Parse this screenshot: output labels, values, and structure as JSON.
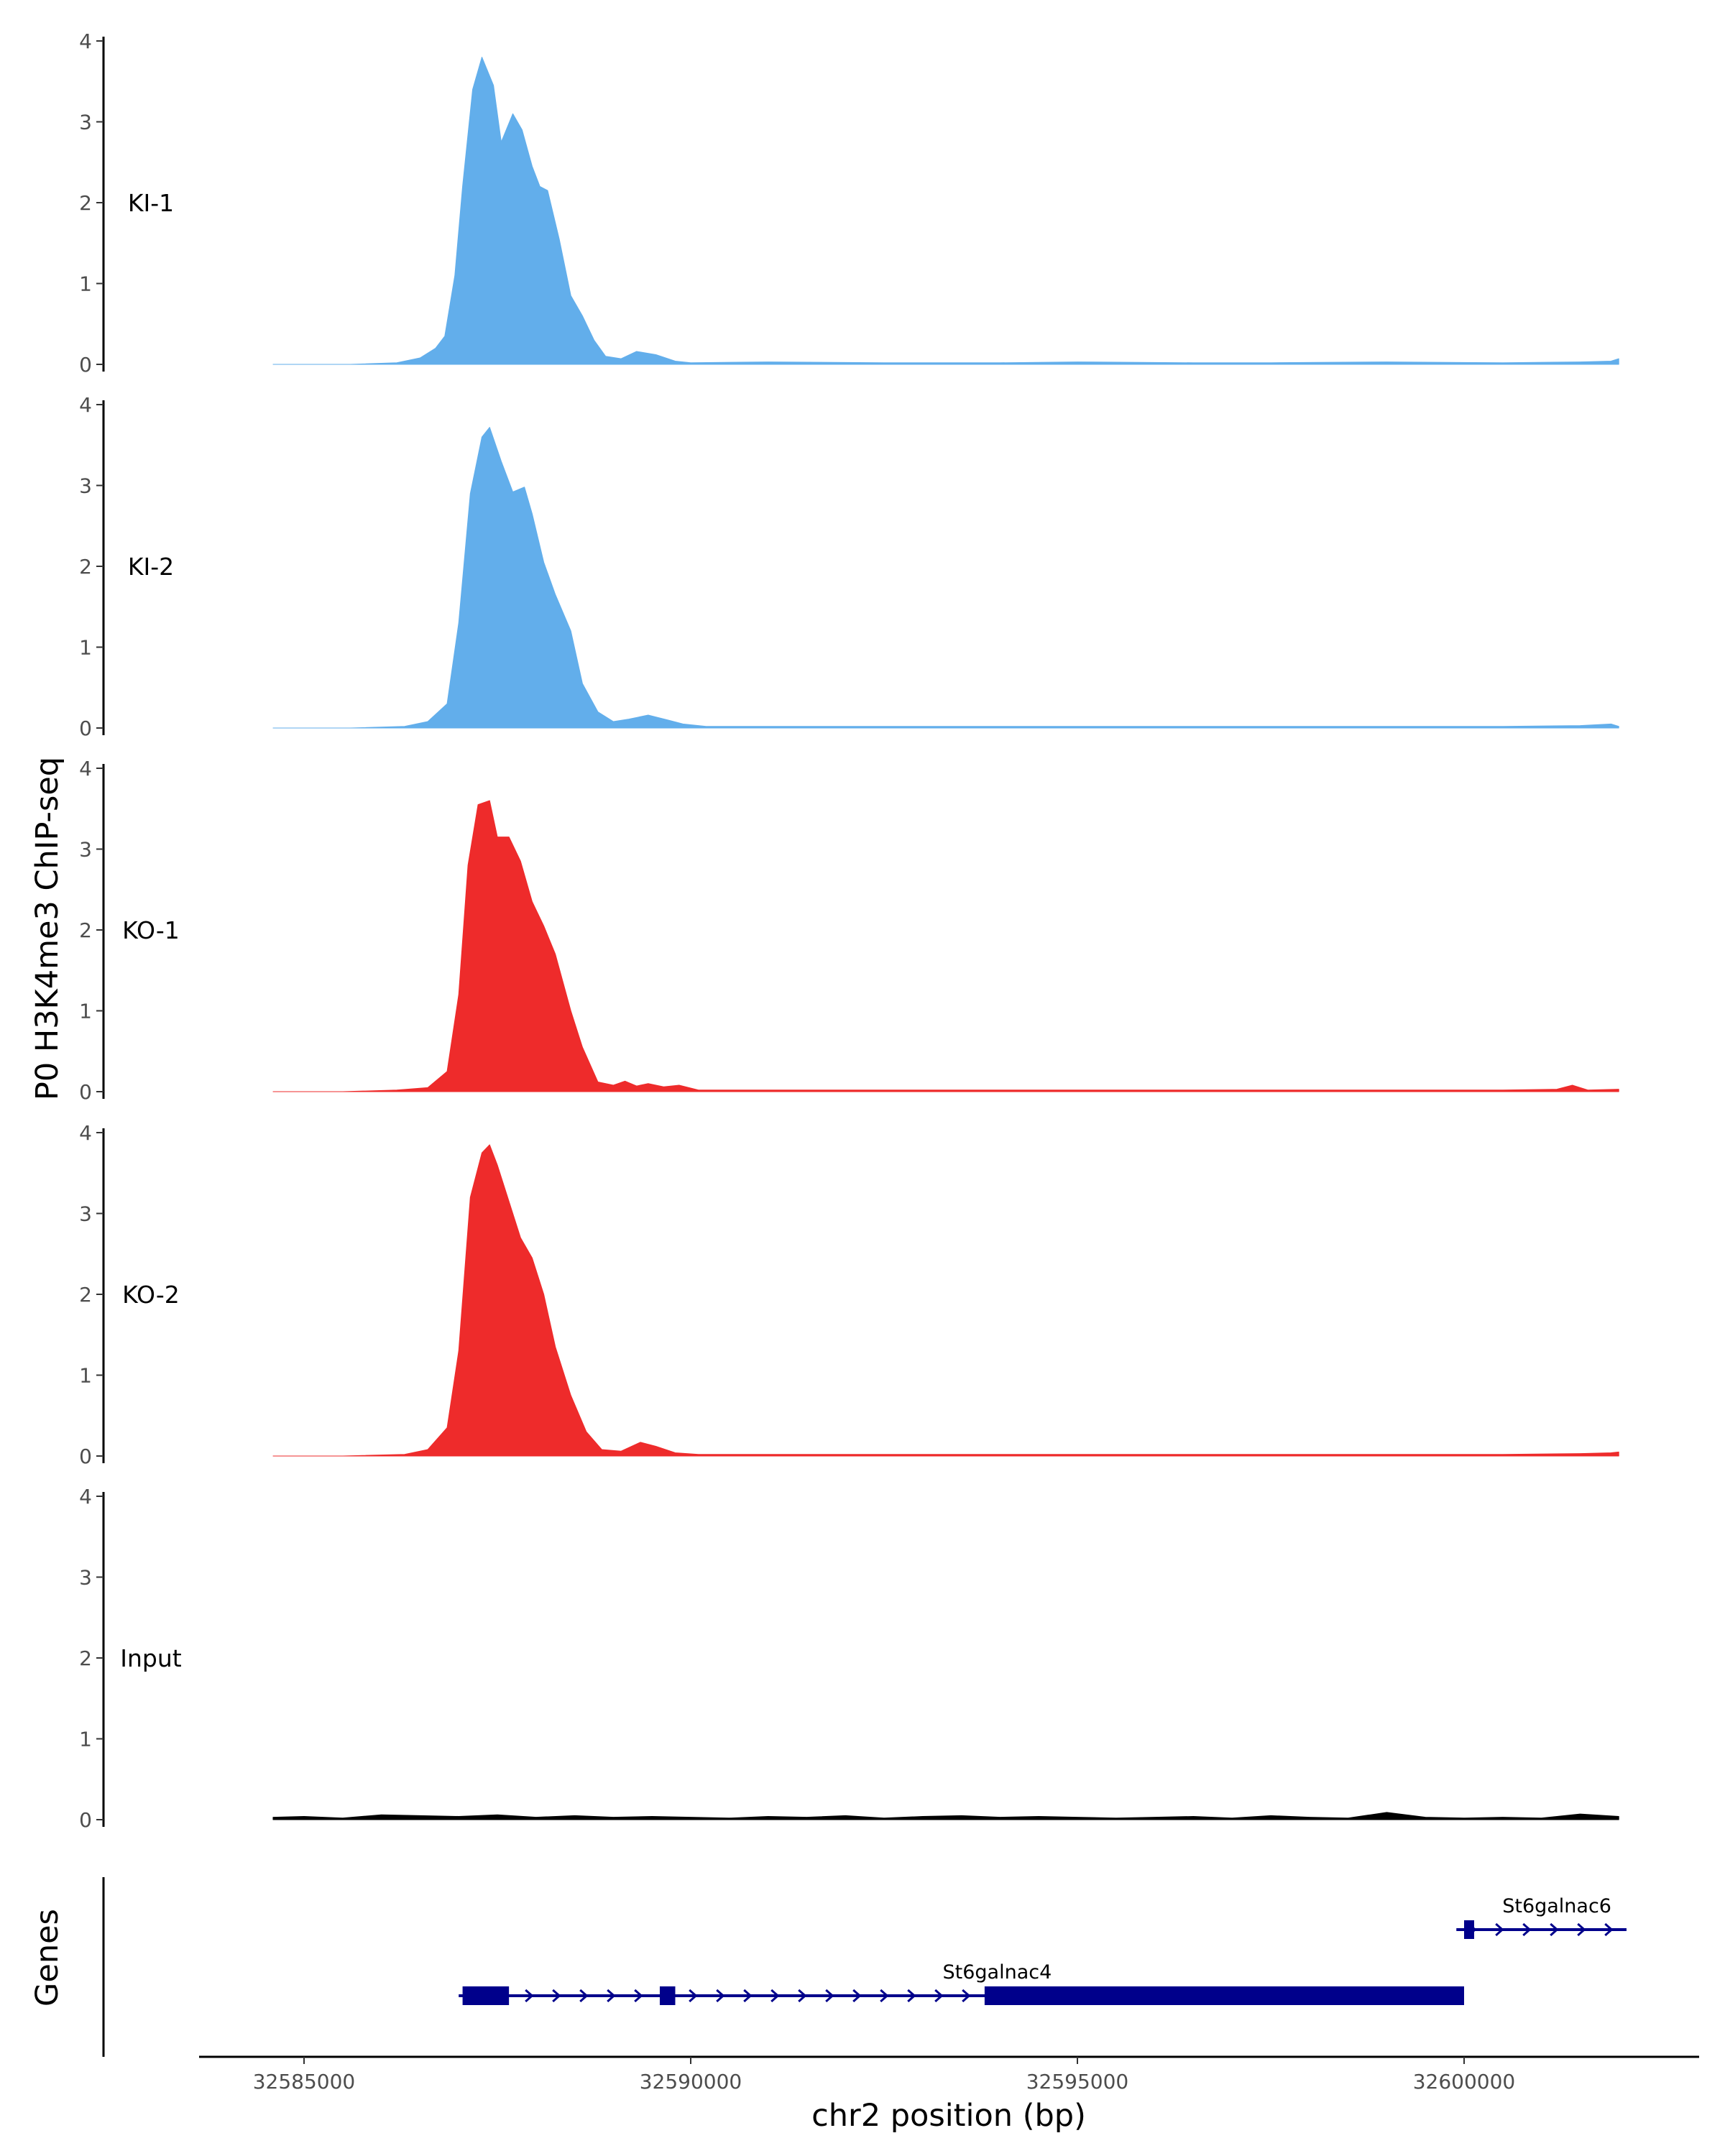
{
  "chart_data": {
    "type": "area",
    "ylabel": "P0 H3K4me3 ChIP-seq",
    "xlabel": "chr2 position (bp)",
    "genes_label": "Genes",
    "xlim": [
      32582400,
      32602600
    ],
    "ylim": [
      0,
      4
    ],
    "y_ticks": [
      0,
      1,
      2,
      3,
      4
    ],
    "x_ticks": [
      32585000,
      32590000,
      32595000,
      32600000
    ],
    "x_tick_labels": [
      "32585000",
      "32590000",
      "32595000",
      "32600000"
    ],
    "grid": false,
    "colors": {
      "KI": "#62aeeb",
      "KO": "#ee2b2b",
      "Input": "#000000",
      "gene": "#00008b"
    },
    "tracks": [
      {
        "name": "KI-1",
        "color": "#62aeeb",
        "x": [
          32584600,
          32585600,
          32586200,
          32586500,
          32586700,
          32586820,
          32586950,
          32587050,
          32587180,
          32587300,
          32587450,
          32587550,
          32587700,
          32587820,
          32587950,
          32588050,
          32588150,
          32588300,
          32588450,
          32588600,
          32588750,
          32588900,
          32589100,
          32589300,
          32589550,
          32589800,
          32590000,
          32591000,
          32592500,
          32594000,
          32595000,
          32596500,
          32597500,
          32599000,
          32600500,
          32601500,
          32601900,
          32602000
        ],
        "y": [
          0.0,
          0.0,
          0.02,
          0.08,
          0.2,
          0.35,
          1.1,
          2.2,
          3.4,
          3.8,
          3.45,
          2.75,
          3.1,
          2.9,
          2.45,
          2.2,
          2.15,
          1.55,
          0.85,
          0.6,
          0.3,
          0.1,
          0.07,
          0.16,
          0.12,
          0.04,
          0.02,
          0.03,
          0.02,
          0.02,
          0.03,
          0.02,
          0.02,
          0.03,
          0.02,
          0.03,
          0.04,
          0.07
        ]
      },
      {
        "name": "KI-2",
        "color": "#62aeeb",
        "x": [
          32584600,
          32585600,
          32586300,
          32586600,
          32586850,
          32587000,
          32587150,
          32587300,
          32587400,
          32587550,
          32587700,
          32587850,
          32587950,
          32588100,
          32588250,
          32588450,
          32588600,
          32588800,
          32589000,
          32589200,
          32589450,
          32589700,
          32589900,
          32590200,
          32591500,
          32593000,
          32594500,
          32596000,
          32597500,
          32599000,
          32600500,
          32601500,
          32601900,
          32602000
        ],
        "y": [
          0.0,
          0.0,
          0.02,
          0.08,
          0.3,
          1.3,
          2.9,
          3.6,
          3.72,
          3.3,
          2.92,
          2.98,
          2.65,
          2.05,
          1.65,
          1.2,
          0.55,
          0.2,
          0.08,
          0.11,
          0.16,
          0.1,
          0.05,
          0.02,
          0.02,
          0.02,
          0.02,
          0.02,
          0.02,
          0.02,
          0.02,
          0.03,
          0.05,
          0.02
        ]
      },
      {
        "name": "KO-1",
        "color": "#ee2b2b",
        "x": [
          32584600,
          32585500,
          32586200,
          32586600,
          32586850,
          32587000,
          32587120,
          32587250,
          32587400,
          32587500,
          32587650,
          32587800,
          32587950,
          32588100,
          32588250,
          32588450,
          32588600,
          32588800,
          32589000,
          32589150,
          32589300,
          32589450,
          32589650,
          32589850,
          32590100,
          32591500,
          32593000,
          32594500,
          32596000,
          32597500,
          32599000,
          32600500,
          32601200,
          32601400,
          32601600,
          32602000
        ],
        "y": [
          0.0,
          0.0,
          0.02,
          0.05,
          0.25,
          1.2,
          2.8,
          3.55,
          3.6,
          3.15,
          3.15,
          2.85,
          2.35,
          2.05,
          1.7,
          1.0,
          0.55,
          0.12,
          0.08,
          0.13,
          0.07,
          0.1,
          0.06,
          0.08,
          0.02,
          0.02,
          0.02,
          0.02,
          0.02,
          0.02,
          0.02,
          0.02,
          0.03,
          0.08,
          0.02,
          0.03
        ]
      },
      {
        "name": "KO-2",
        "color": "#ee2b2b",
        "x": [
          32584600,
          32585500,
          32586300,
          32586600,
          32586850,
          32587000,
          32587150,
          32587300,
          32587400,
          32587500,
          32587650,
          32587800,
          32587950,
          32588100,
          32588250,
          32588450,
          32588650,
          32588850,
          32589100,
          32589350,
          32589550,
          32589800,
          32590100,
          32591500,
          32593000,
          32594500,
          32596000,
          32597500,
          32599000,
          32600500,
          32601500,
          32601900,
          32602000
        ],
        "y": [
          0.0,
          0.0,
          0.02,
          0.08,
          0.35,
          1.3,
          3.2,
          3.75,
          3.85,
          3.6,
          3.15,
          2.7,
          2.45,
          2.0,
          1.35,
          0.75,
          0.3,
          0.08,
          0.06,
          0.17,
          0.12,
          0.04,
          0.02,
          0.02,
          0.02,
          0.02,
          0.02,
          0.02,
          0.02,
          0.02,
          0.03,
          0.04,
          0.05
        ]
      },
      {
        "name": "Input",
        "color": "#000000",
        "x": [
          32584600,
          32585000,
          32585500,
          32586000,
          32586500,
          32587000,
          32587500,
          32588000,
          32588500,
          32589000,
          32589500,
          32590000,
          32590500,
          32591000,
          32591500,
          32592000,
          32592500,
          32593000,
          32593500,
          32594000,
          32594500,
          32595000,
          32595500,
          32596000,
          32596500,
          32597000,
          32597500,
          32598000,
          32598500,
          32599000,
          32599500,
          32600000,
          32600500,
          32601000,
          32601500,
          32602000
        ],
        "y": [
          0.03,
          0.04,
          0.02,
          0.06,
          0.05,
          0.04,
          0.06,
          0.03,
          0.05,
          0.03,
          0.04,
          0.03,
          0.02,
          0.04,
          0.03,
          0.05,
          0.02,
          0.04,
          0.05,
          0.03,
          0.04,
          0.03,
          0.02,
          0.03,
          0.04,
          0.02,
          0.05,
          0.03,
          0.02,
          0.09,
          0.03,
          0.02,
          0.03,
          0.02,
          0.07,
          0.04
        ]
      }
    ],
    "genes": [
      {
        "name": "St6galnac4",
        "start": 32587000,
        "end": 32600000,
        "strand": "+",
        "exons": [
          [
            32587050,
            32587650
          ],
          [
            32589600,
            32589800
          ],
          [
            32593800,
            32600000
          ]
        ]
      },
      {
        "name": "St6galnac6",
        "start": 32599900,
        "end": 32602100,
        "strand": "+",
        "exons": [
          [
            32600000,
            32600130
          ]
        ]
      }
    ]
  }
}
